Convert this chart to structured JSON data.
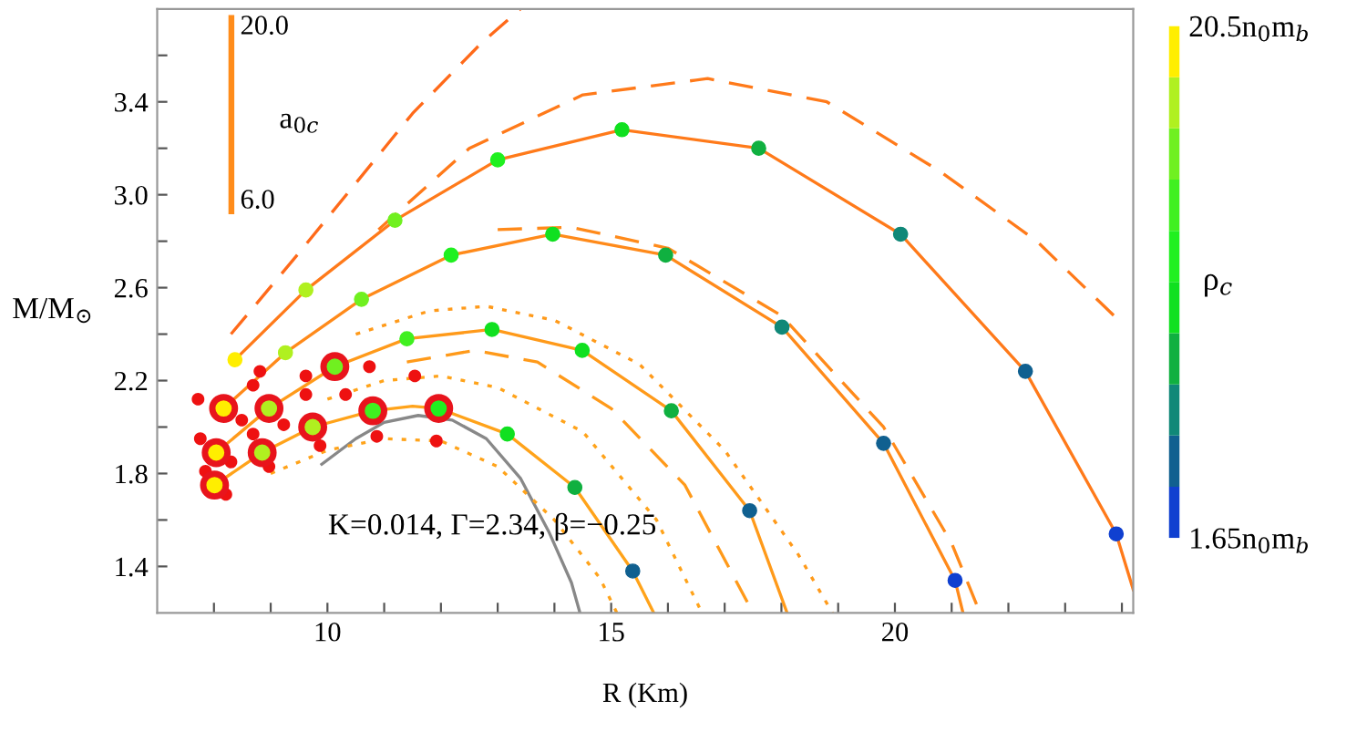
{
  "chart_data": {
    "type": "line",
    "xlabel": "R (Km)",
    "ylabel": "M/M$_{⊙}$",
    "clabel": "ρ$_{c}$",
    "xlim": [
      7,
      24.2
    ],
    "ylim": [
      1.2,
      3.8
    ],
    "xticks": [
      {
        "value": 8,
        "label": null
      },
      {
        "value": 9,
        "label": null
      },
      10,
      {
        "value": 11,
        "label": null
      },
      {
        "value": 12,
        "label": null
      },
      {
        "value": 13,
        "label": null
      },
      {
        "value": 14,
        "label": null
      },
      15,
      {
        "value": 16,
        "label": null
      },
      {
        "value": 17,
        "label": null
      },
      {
        "value": 18,
        "label": null
      },
      {
        "value": 19,
        "label": null
      },
      20,
      {
        "value": 21,
        "label": null
      },
      {
        "value": 22,
        "label": null
      },
      {
        "value": 23,
        "label": null
      },
      {
        "value": 24,
        "label": null
      }
    ],
    "yticks": [
      1.4,
      {
        "value": 1.6,
        "label": null
      },
      1.8,
      {
        "value": 2.0,
        "label": null
      },
      2.2,
      {
        "value": 2.4,
        "label": null
      },
      2.6,
      {
        "value": 2.8,
        "label": null
      },
      {
        "value": 3.0,
        "label": "3.0"
      },
      {
        "value": 3.2,
        "label": null
      },
      3.4,
      {
        "value": 3.6,
        "label": null
      }
    ],
    "clim": [
      1.65,
      20.5
    ],
    "cticks": [
      {
        "value": 1.65,
        "label": "1.65n$_{0}$m$_{b}$"
      },
      {
        "value": 20.5,
        "label": "20.5n$_{0}$m$_{b}$"
      }
    ],
    "grid": false,
    "legend": false,
    "annotations": [
      "K=0.014, Γ=2.34, β=−0.25",
      "20.0",
      "a$_{0c}$",
      "6.0"
    ],
    "series": [
      {
        "color": "#888888",
        "line_style": "solid",
        "x": [
          9.9,
          10.5,
          11.0,
          11.6,
          12.2,
          12.8,
          13.4,
          13.9,
          14.3,
          14.45
        ],
        "values": [
          1.84,
          1.95,
          2.02,
          2.05,
          2.03,
          1.95,
          1.78,
          1.55,
          1.33,
          1.2
        ]
      },
      {
        "color": "#ffa31a",
        "line_style": "solid",
        "x": [
          8.01,
          8.85,
          9.74,
          10.8,
          11.5,
          11.96,
          13.17,
          14.36,
          15.38,
          15.75
        ],
        "values": [
          1.75,
          1.89,
          2.0,
          2.07,
          2.09,
          2.08,
          1.97,
          1.74,
          1.38,
          1.2
        ]
      },
      {
        "color": "#ffa31a",
        "line_style": "dotted",
        "x": [
          9.0,
          10.0,
          11.0,
          12.0,
          13.0,
          14.0,
          14.8,
          15.1
        ],
        "values": [
          1.8,
          1.9,
          1.95,
          1.94,
          1.83,
          1.6,
          1.35,
          1.2
        ]
      },
      {
        "color": "#ffa31a",
        "line_style": "dotted",
        "x": [
          10.0,
          11.0,
          12.0,
          13.0,
          14.5,
          15.8,
          16.6
        ],
        "values": [
          2.12,
          2.2,
          2.22,
          2.17,
          1.98,
          1.6,
          1.2
        ]
      },
      {
        "color": "#ff9a1a",
        "line_style": "solid",
        "x": [
          8.04,
          8.97,
          10.13,
          11.4,
          12.9,
          14.49,
          16.06,
          17.44,
          18.1
        ],
        "values": [
          1.89,
          2.08,
          2.26,
          2.38,
          2.42,
          2.33,
          2.07,
          1.64,
          1.2
        ]
      },
      {
        "color": "#ff9a1a",
        "line_style": "dashed",
        "x": [
          11.4,
          12.6,
          13.7,
          15.0,
          16.3,
          17.5
        ],
        "values": [
          2.28,
          2.33,
          2.28,
          2.08,
          1.75,
          1.2
        ]
      },
      {
        "color": "#ff9a1a",
        "line_style": "dotted",
        "x": [
          10.5,
          11.8,
          12.8,
          14.0,
          15.5,
          17.0,
          18.3,
          18.9
        ],
        "values": [
          2.4,
          2.5,
          2.52,
          2.46,
          2.27,
          1.9,
          1.45,
          1.2
        ]
      },
      {
        "color": "#ff8a1a",
        "line_style": "solid",
        "x": [
          8.17,
          9.26,
          10.6,
          12.18,
          13.97,
          15.96,
          18.01,
          19.8,
          21.06,
          21.2
        ],
        "values": [
          2.08,
          2.32,
          2.55,
          2.74,
          2.83,
          2.74,
          2.43,
          1.93,
          1.34,
          1.2
        ]
      },
      {
        "color": "#ff8a1a",
        "line_style": "dashed",
        "x": [
          13.0,
          14.3,
          16.0,
          18.0,
          19.8,
          21.0,
          21.5
        ],
        "values": [
          2.85,
          2.86,
          2.77,
          2.48,
          2.0,
          1.5,
          1.2
        ]
      },
      {
        "color": "#ff7a1a",
        "line_style": "solid",
        "x": [
          8.37,
          9.62,
          11.19,
          13.0,
          15.19,
          17.6,
          20.1,
          22.3,
          23.9,
          24.2
        ],
        "values": [
          2.29,
          2.59,
          2.89,
          3.15,
          3.28,
          3.2,
          2.83,
          2.24,
          1.54,
          1.3
        ]
      },
      {
        "color": "#ff7a1a",
        "line_style": "dashed",
        "x": [
          10.9,
          12.5,
          14.5,
          16.7,
          18.8,
          20.8,
          22.5,
          23.9
        ],
        "values": [
          2.85,
          3.2,
          3.43,
          3.5,
          3.4,
          3.1,
          2.8,
          2.47
        ]
      },
      {
        "color": "#ff6a1a",
        "line_style": "dashed",
        "x": [
          8.3,
          9.5,
          10.5,
          11.5,
          12.7,
          13.4
        ],
        "values": [
          2.4,
          2.75,
          3.05,
          3.35,
          3.65,
          3.8
        ]
      },
      {
        "type": "scatter",
        "color": "#ee1111",
        "marker": "circle",
        "x": [
          7.72,
          7.76,
          7.85,
          8.21,
          8.3,
          8.49,
          8.69,
          8.69,
          8.81,
          8.97,
          9.23,
          9.62,
          9.62,
          9.87,
          10.32,
          10.74,
          10.87,
          11.54,
          11.92
        ],
        "values": [
          2.12,
          1.95,
          1.81,
          1.71,
          1.85,
          2.03,
          1.97,
          2.18,
          2.24,
          1.83,
          2.01,
          2.14,
          2.22,
          1.92,
          2.14,
          2.26,
          1.96,
          2.22,
          1.94
        ]
      },
      {
        "type": "scatter",
        "color": "#e8141c",
        "marker": "circle",
        "x": [
          8.01,
          8.04,
          8.17,
          8.85,
          8.97,
          9.74,
          10.13,
          10.8,
          11.96
        ],
        "values": [
          1.75,
          1.89,
          2.08,
          1.89,
          2.08,
          2.0,
          2.26,
          2.07,
          2.08
        ],
        "cvalues": [
          20,
          20,
          20,
          18,
          18,
          17,
          15,
          13,
          12
        ]
      },
      {
        "type": "scatter",
        "marker": "circle",
        "colors": [
          "#ffee00",
          "#b0f020",
          "#b0f020",
          "#70f020",
          "#70f020",
          "#20f020",
          "#20f020",
          "#10e020",
          "#10e020",
          "#40f020",
          "#10e020",
          "#10e020",
          "#10b040",
          "#10b040",
          "#10b040",
          "#10e020",
          "#10b040",
          "#108878",
          "#108878",
          "#106090",
          "#106090",
          "#106090",
          "#106090",
          "#1040d0",
          "#1040d0"
        ],
        "x": [
          8.37,
          9.26,
          9.62,
          10.6,
          11.19,
          12.18,
          13.0,
          13.97,
          15.19,
          11.4,
          12.9,
          14.49,
          15.96,
          17.6,
          16.06,
          13.17,
          14.36,
          18.01,
          20.1,
          15.38,
          17.44,
          19.8,
          22.3,
          21.06,
          23.9
        ],
        "values": [
          2.29,
          2.32,
          2.59,
          2.55,
          2.89,
          2.74,
          3.15,
          2.83,
          3.28,
          2.38,
          2.42,
          2.33,
          2.74,
          3.2,
          2.07,
          1.97,
          1.74,
          2.43,
          2.83,
          1.38,
          1.64,
          1.93,
          2.24,
          1.34,
          1.54
        ],
        "cvalues": [
          20,
          18,
          17,
          15,
          15,
          12,
          12,
          11,
          11,
          13,
          11,
          10,
          9,
          9,
          8,
          10,
          8,
          7,
          7,
          5,
          5,
          5,
          5,
          3,
          3
        ]
      }
    ]
  }
}
